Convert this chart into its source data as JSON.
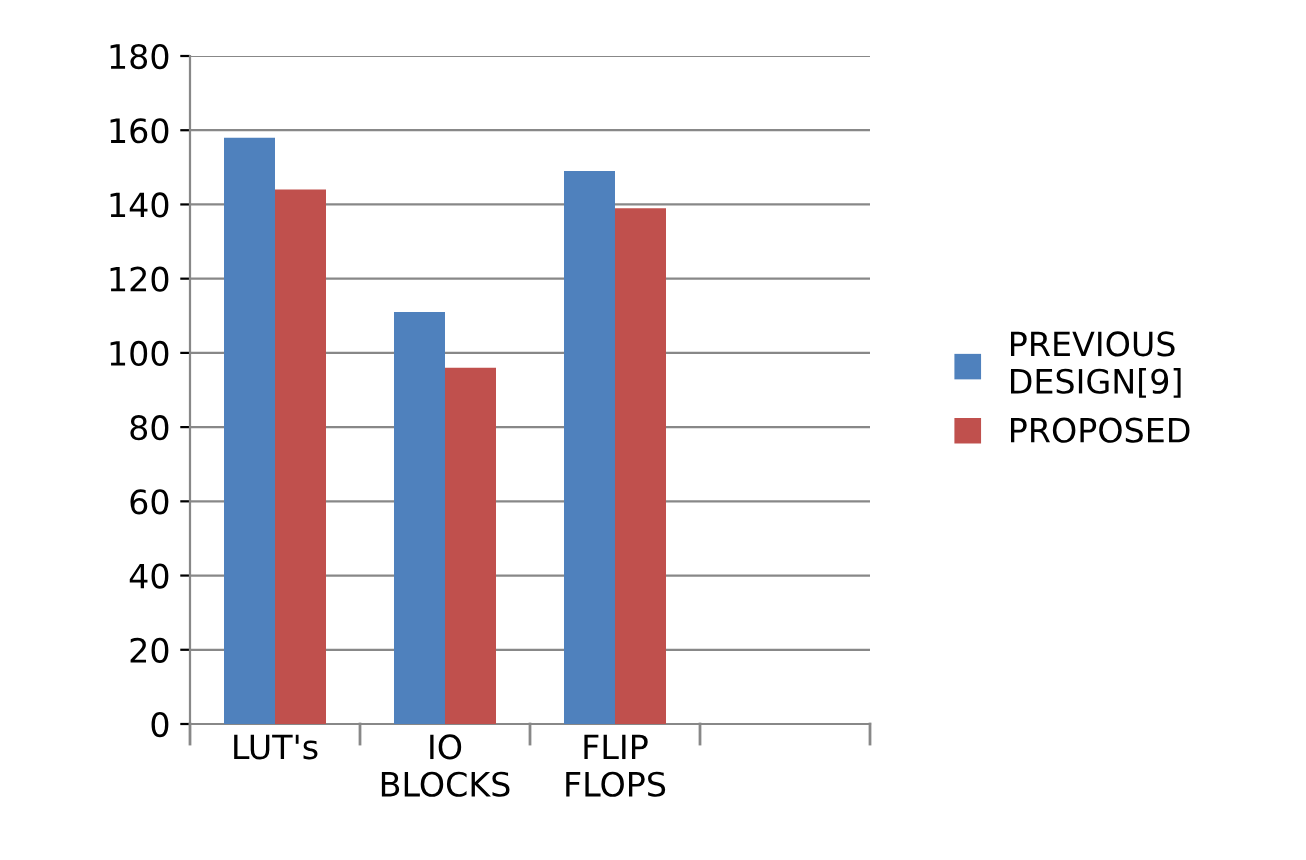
{
  "chart_data": {
    "type": "bar",
    "categories": [
      "LUT's",
      "IO BLOCKS",
      "FLIP FLOPS",
      null
    ],
    "series": [
      {
        "name": "PREVIOUS DESIGN[9]",
        "color": "#4f81bd",
        "values": [
          158,
          111,
          149,
          null
        ]
      },
      {
        "name": "PROPOSED",
        "color": "#c0504d",
        "values": [
          144,
          96,
          139,
          null
        ]
      }
    ],
    "ylim": [
      0,
      180
    ],
    "yticks": [
      0,
      20,
      40,
      60,
      80,
      100,
      120,
      140,
      160,
      180
    ],
    "grid": "y",
    "legend": "right"
  }
}
